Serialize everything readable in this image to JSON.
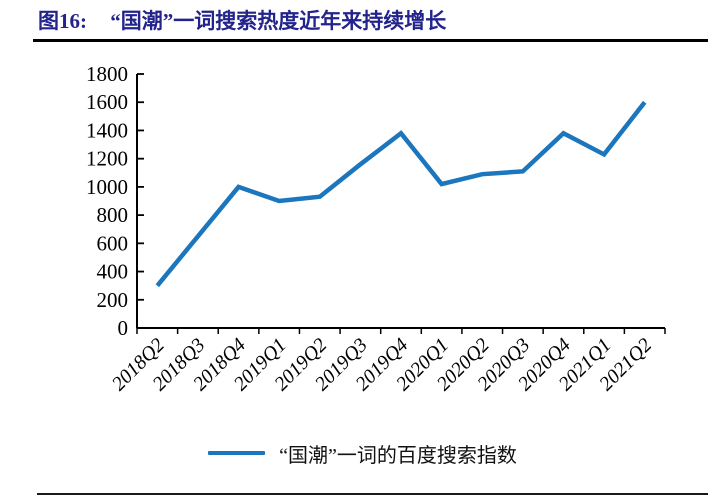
{
  "figure": {
    "label": "图16:",
    "title": "“国潮”一词搜索热度近年来持续增长"
  },
  "colors": {
    "title_text": "#23238C",
    "series_line": "#1B76BD",
    "axis": "#000000",
    "divider": "#1a1a1a"
  },
  "legend": {
    "series_label": "“国潮”一词的百度搜索指数"
  },
  "chart_data": {
    "type": "line",
    "title": "“国潮”一词搜索热度近年来持续增长",
    "categories": [
      "2018Q2",
      "2018Q3",
      "2018Q4",
      "2019Q1",
      "2019Q2",
      "2019Q3",
      "2019Q4",
      "2020Q1",
      "2020Q2",
      "2020Q3",
      "2020Q4",
      "2021Q1",
      "2021Q2"
    ],
    "series": [
      {
        "name": "“国潮”一词的百度搜索指数",
        "values": [
          300,
          650,
          1000,
          900,
          930,
          1160,
          1380,
          1020,
          1090,
          1110,
          1380,
          1230,
          1600
        ],
        "color": "#1B76BD"
      }
    ],
    "xlabel": "",
    "ylabel": "",
    "ylim": [
      0,
      1800
    ],
    "ytick_step": 200,
    "grid": false,
    "legend_position": "bottom",
    "x_label_rotation": -45,
    "x_tick_style": "between-categories"
  }
}
